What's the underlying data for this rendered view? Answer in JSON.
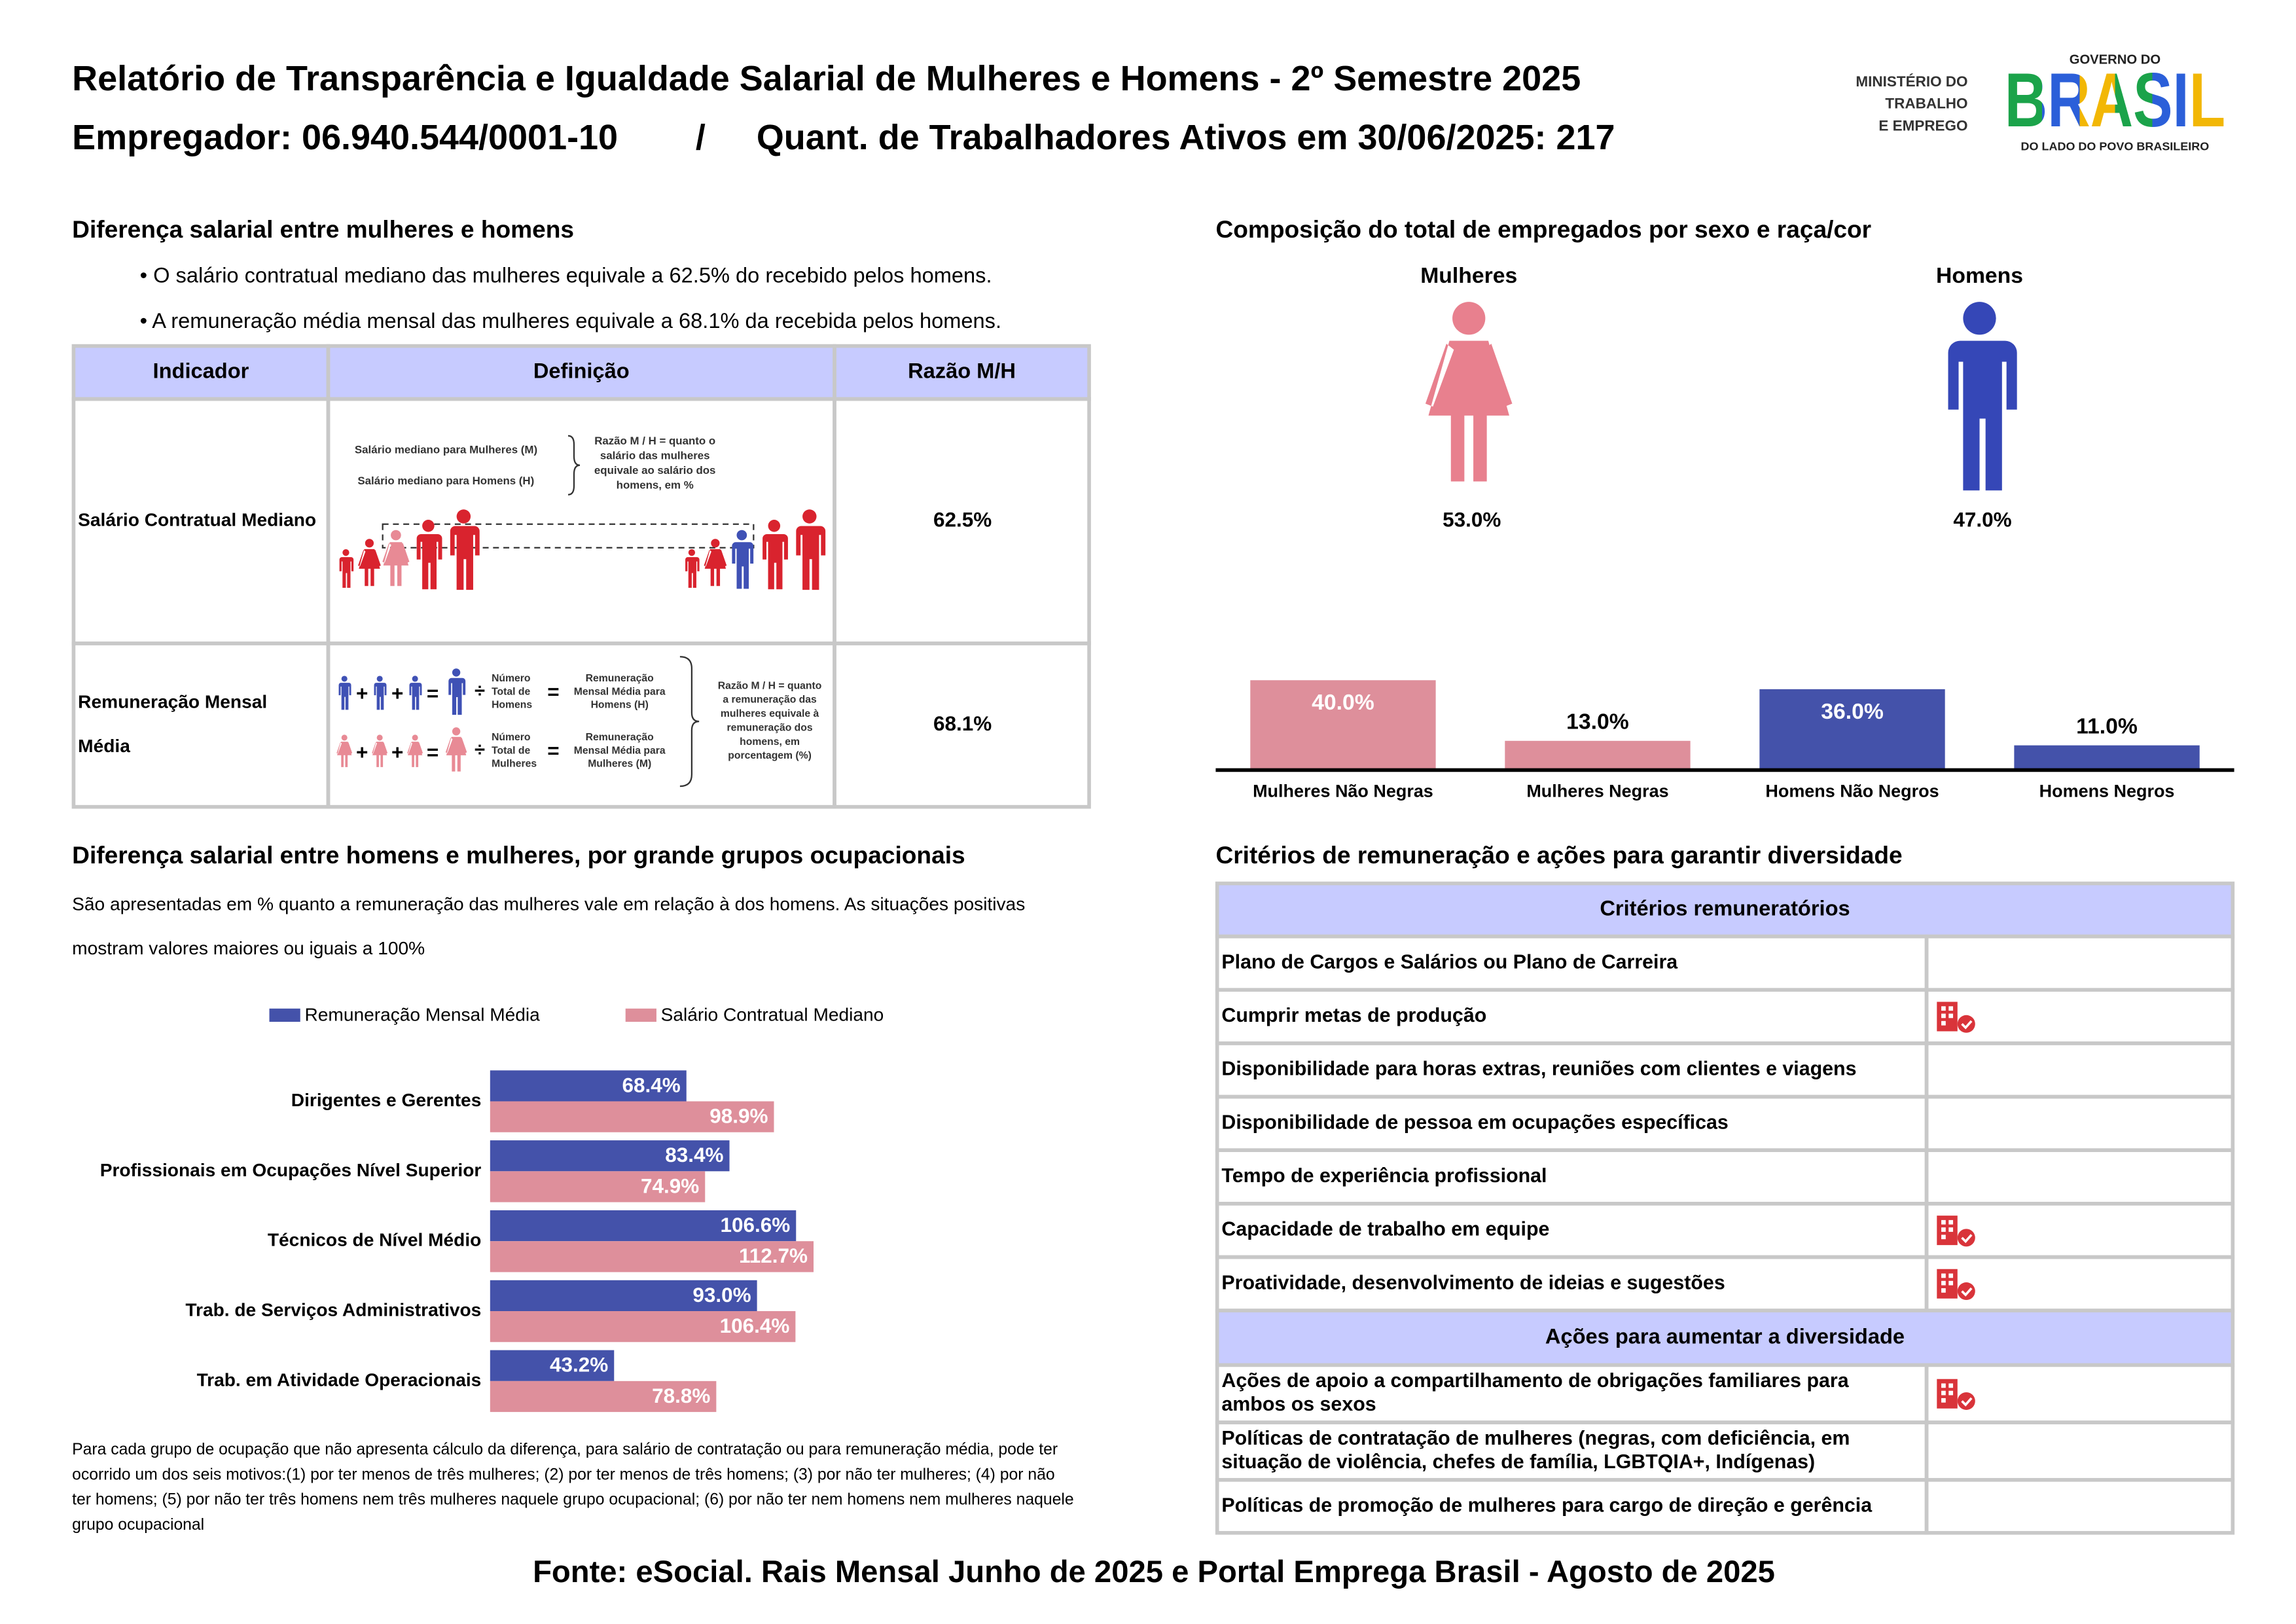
{
  "header": {
    "title": "Relatório de Transparência e Igualdade Salarial de Mulheres e Homens - 2º Semestre 2025",
    "employer": "Empregador: 06.940.544/0001-10",
    "separator": "/",
    "workers": "Quant. de Trabalhadores Ativos em 30/06/2025: 217"
  },
  "logos": {
    "ministry": [
      "MINISTÉRIO DO",
      "TRABALHO",
      "E EMPREGO"
    ],
    "gov_top": "GOVERNO DO",
    "gov_brand": "BRASIL",
    "gov_tagline": "DO LADO DO POVO BRASILEIRO"
  },
  "salary_gap": {
    "title": "Diferença salarial entre mulheres e homens",
    "bullets": [
      "• O salário contratual mediano das mulheres equivale a 62.5% do recebido pelos homens.",
      "• A remuneração média mensal das mulheres equivale a 68.1% da recebida pelos homens."
    ],
    "table": {
      "headers": [
        "Indicador",
        "Definição",
        "Razão M/H"
      ],
      "rows": [
        {
          "label": [
            "Salário Contratual Mediano"
          ],
          "value": "62.5%"
        },
        {
          "label": [
            "Remuneração Mensal",
            "Média"
          ],
          "value": "68.1%"
        }
      ]
    },
    "diagram1": {
      "women": "Salário mediano para Mulheres (M)",
      "men": "Salário mediano para Homens (H)",
      "ratio": [
        "Razão M / H = quanto o",
        "salário das mulheres",
        "equivale ao salário dos",
        "homens, em %"
      ]
    },
    "diagram2": {
      "plus": "+",
      "equals": "=",
      "divide": "÷",
      "men_count": [
        "Número",
        "Total de",
        "Homens"
      ],
      "women_count": [
        "Número",
        "Total de",
        "Mulheres"
      ],
      "men_pay": [
        "Remuneração",
        "Mensal Média para",
        "Homens (H)"
      ],
      "women_pay": [
        "Remuneração",
        "Mensal Média para",
        "Mulheres (M)"
      ],
      "ratio": [
        "Razão M / H = quanto",
        "a remuneração das",
        "mulheres equivale à",
        "remuneração dos",
        "homens, em",
        "porcentagem (%)"
      ]
    }
  },
  "composition": {
    "title": "Composição do total de empregados por sexo e raça/cor",
    "women": {
      "label": "Mulheres",
      "value": "53.0%"
    },
    "men": {
      "label": "Homens",
      "value": "47.0%"
    }
  },
  "occupational": {
    "description": [
      "São apresentadas em % quanto a remuneração das mulheres vale em relação à dos homens. As situações positivas",
      "mostram valores maiores ou iguais a 100%"
    ],
    "footnote": [
      "Para cada grupo de ocupação que não apresenta cálculo da diferença, para salário de contratação ou para remuneração média, pode ter",
      "ocorrido um dos seis motivos:(1) por ter menos de três mulheres; (2) por ter menos de três homens; (3) por não ter mulheres; (4) por não",
      "ter homens; (5) por não ter três homens nem três mulheres naquele grupo ocupacional; (6) por não ter nem homens nem mulheres naquele",
      "grupo ocupacional"
    ]
  },
  "criteria": {
    "title": "Critérios de remuneração e ações para garantir diversidade",
    "header1": "Critérios remuneratórios",
    "items": [
      {
        "label": [
          "Plano de Cargos e Salários ou Plano de Carreira"
        ],
        "checked": false
      },
      {
        "label": [
          "Cumprir metas de produção"
        ],
        "checked": true
      },
      {
        "label": [
          "Disponibilidade para horas extras, reuniões com clientes e viagens"
        ],
        "checked": false
      },
      {
        "label": [
          "Disponibilidade de pessoa em ocupações específicas"
        ],
        "checked": false
      },
      {
        "label": [
          "Tempo de experiência profissional"
        ],
        "checked": false
      },
      {
        "label": [
          "Capacidade de trabalho em equipe"
        ],
        "checked": true
      },
      {
        "label": [
          "Proatividade, desenvolvimento de ideias e sugestões"
        ],
        "checked": true
      }
    ],
    "header2": "Ações para aumentar a diversidade",
    "actions": [
      {
        "label": [
          "Ações de apoio a compartilhamento de obrigações familiares para",
          "ambos os sexos"
        ],
        "checked": true
      },
      {
        "label": [
          "Políticas de contratação de mulheres (negras, com deficiência, em",
          "situação de violência, chefes de família, LGBTQIA+, Indígenas)"
        ],
        "checked": false
      },
      {
        "label": [
          "Políticas de promoção de mulheres para cargo de direção e gerência"
        ],
        "checked": false
      }
    ]
  },
  "footer": "Fonte: eSocial. Rais Mensal Junho de 2025 e Portal Emprega Brasil - Agosto de 2025",
  "chart_data": [
    {
      "type": "bar",
      "categories": [
        "Mulheres Não Negras",
        "Mulheres Negras",
        "Homens Não Negros",
        "Homens Negros"
      ],
      "values": [
        40.0,
        13.0,
        36.0,
        11.0
      ],
      "value_labels": [
        "40.0%",
        "13.0%",
        "36.0%",
        "11.0%"
      ],
      "colors": [
        "#de8f9b",
        "#de8f9b",
        "#4452aa",
        "#4452aa"
      ],
      "ylim": [
        0,
        40
      ]
    },
    {
      "type": "hbar",
      "title": "Diferença salarial entre homens e mulheres, por grande grupos ocupacionais",
      "categories": [
        "Dirigentes e Gerentes",
        "Profissionais em Ocupações Nível Superior",
        "Técnicos de Nível Médio",
        "Trab. de Serviços Administrativos",
        "Trab. em Atividade Operacionais"
      ],
      "series": [
        {
          "name": "Remuneração Mensal Média",
          "color": "#4452aa",
          "values": [
            68.4,
            83.4,
            106.6,
            93.0,
            43.2
          ],
          "value_labels": [
            "68.4%",
            "83.4%",
            "106.6%",
            "93.0%",
            "43.2%"
          ]
        },
        {
          "name": "Salário Contratual Mediano",
          "color": "#de8f9b",
          "values": [
            98.9,
            74.9,
            112.7,
            106.4,
            78.8
          ],
          "value_labels": [
            "98.9%",
            "74.9%",
            "112.7%",
            "106.4%",
            "78.8%"
          ]
        }
      ],
      "xlim": [
        0,
        120
      ],
      "legend": "top"
    }
  ]
}
